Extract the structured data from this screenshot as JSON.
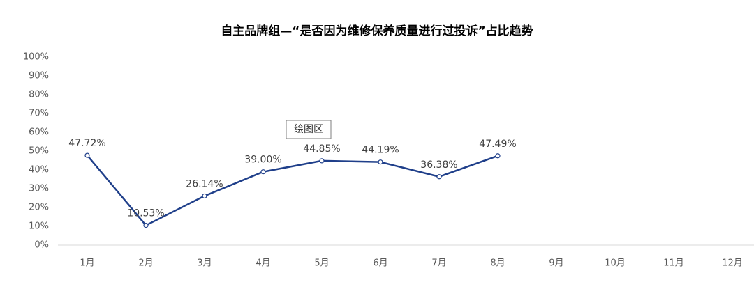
{
  "chart_data": {
    "type": "line",
    "title": "自主品牌组—“是否因为维修保养质量进行过投诉”占比趋势",
    "annotation": "绘图区",
    "categories": [
      "1月",
      "2月",
      "3月",
      "4月",
      "5月",
      "6月",
      "7月",
      "8月",
      "9月",
      "10月",
      "11月",
      "12月"
    ],
    "series": [
      {
        "name": "占比",
        "color": "#1f3f8a",
        "values": [
          47.72,
          10.53,
          26.14,
          39.0,
          44.85,
          44.19,
          36.38,
          47.49,
          null,
          null,
          null,
          null
        ],
        "value_labels": [
          "47.72%",
          "10.53%",
          "26.14%",
          "39.00%",
          "44.85%",
          "44.19%",
          "36.38%",
          "47.49%",
          null,
          null,
          null,
          null
        ]
      }
    ],
    "ylim": [
      0,
      100
    ],
    "yticks": [
      {
        "value": 0,
        "label": "0%"
      },
      {
        "value": 10,
        "label": "10%"
      },
      {
        "value": 20,
        "label": "20%"
      },
      {
        "value": 30,
        "label": "30%"
      },
      {
        "value": 40,
        "label": "40%"
      },
      {
        "value": 50,
        "label": "50%"
      },
      {
        "value": 60,
        "label": "60%"
      },
      {
        "value": 70,
        "label": "70%"
      },
      {
        "value": 80,
        "label": "80%"
      },
      {
        "value": 90,
        "label": "90%"
      },
      {
        "value": 100,
        "label": "100%"
      }
    ],
    "grid": false,
    "legend": false
  }
}
